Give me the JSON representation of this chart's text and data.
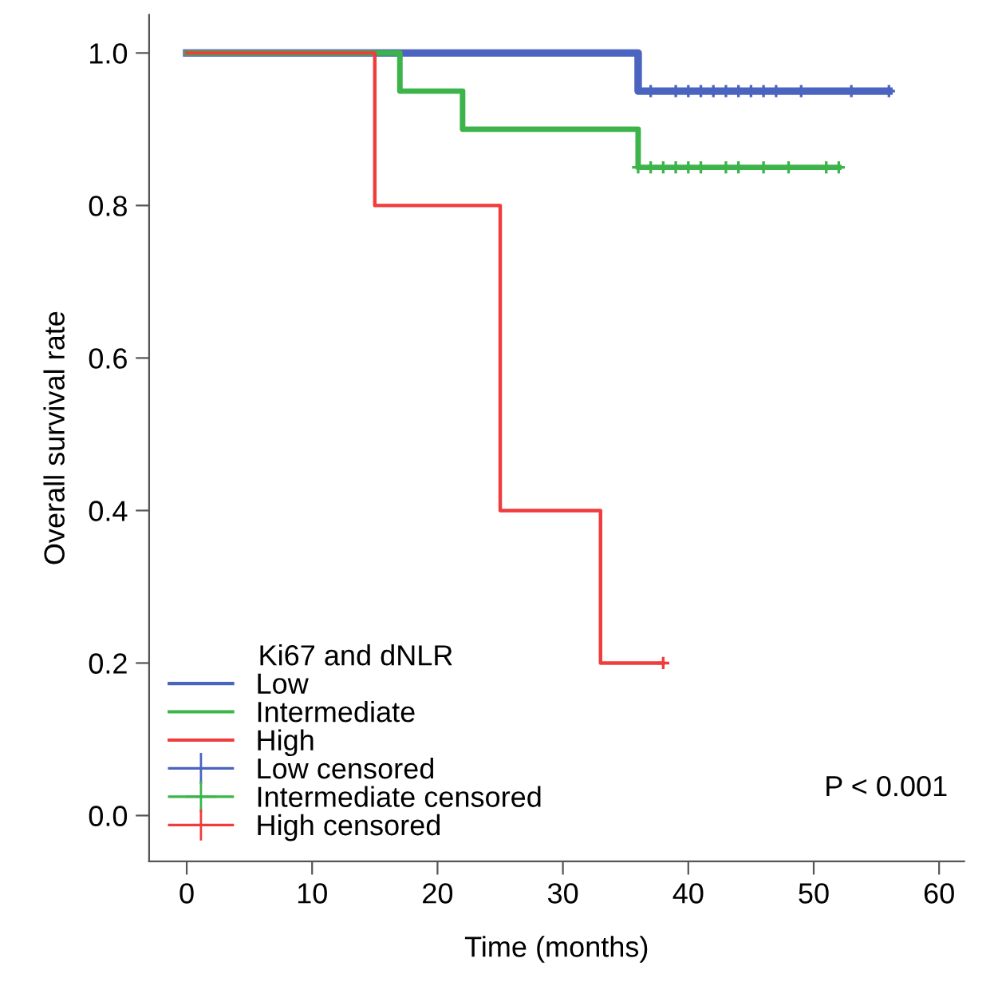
{
  "chart_data": {
    "type": "step",
    "xlabel": "Time (months)",
    "ylabel": "Overall survival rate",
    "legend_title": "Ki67 and dNLR",
    "legend": "bottom left",
    "grid": false,
    "xlim": [
      -3,
      62
    ],
    "ylim": [
      -0.06,
      1.05
    ],
    "xticks": [
      0,
      10,
      20,
      30,
      40,
      50,
      60
    ],
    "yticks": [
      {
        "value": 0,
        "label": "0.0"
      },
      {
        "value": 0.2,
        "label": "0.2"
      },
      {
        "value": 0.4,
        "label": "0.4"
      },
      {
        "value": 0.6,
        "label": "0.6"
      },
      {
        "value": 0.8,
        "label": "0.8"
      },
      {
        "value": 1,
        "label": "1.0"
      }
    ],
    "annotations": [
      "P < 0.001"
    ],
    "series": [
      {
        "name": "Low",
        "color": "#4a64c0",
        "x": [
          0,
          36,
          56
        ],
        "values": [
          1.0,
          0.95,
          0.95
        ]
      },
      {
        "name": "Intermediate",
        "color": "#3cb44a",
        "x": [
          0,
          17,
          22,
          36,
          52
        ],
        "values": [
          1.0,
          0.95,
          0.9,
          0.85,
          0.85
        ]
      },
      {
        "name": "High",
        "color": "#f03c3c",
        "x": [
          0,
          15,
          25,
          33,
          38
        ],
        "values": [
          1.0,
          0.8,
          0.4,
          0.2,
          0.2
        ]
      },
      {
        "name": "Low censored",
        "type": "scatter",
        "marker": "cross",
        "color": "#4a64c0",
        "x": [
          37,
          39,
          40,
          41,
          42,
          43,
          44,
          45,
          46,
          47,
          49,
          53,
          56
        ],
        "values": [
          0.95,
          0.95,
          0.95,
          0.95,
          0.95,
          0.95,
          0.95,
          0.95,
          0.95,
          0.95,
          0.95,
          0.95,
          0.95
        ]
      },
      {
        "name": "Intermediate censored",
        "type": "scatter",
        "marker": "cross",
        "color": "#3cb44a",
        "x": [
          36,
          37,
          38,
          39,
          40,
          41,
          43,
          44,
          46,
          48,
          51,
          52
        ],
        "values": [
          0.85,
          0.85,
          0.85,
          0.85,
          0.85,
          0.85,
          0.85,
          0.85,
          0.85,
          0.85,
          0.85,
          0.85
        ]
      },
      {
        "name": "High censored",
        "type": "scatter",
        "marker": "cross",
        "color": "#f03c3c",
        "x": [
          38
        ],
        "values": [
          0.2
        ]
      }
    ]
  }
}
